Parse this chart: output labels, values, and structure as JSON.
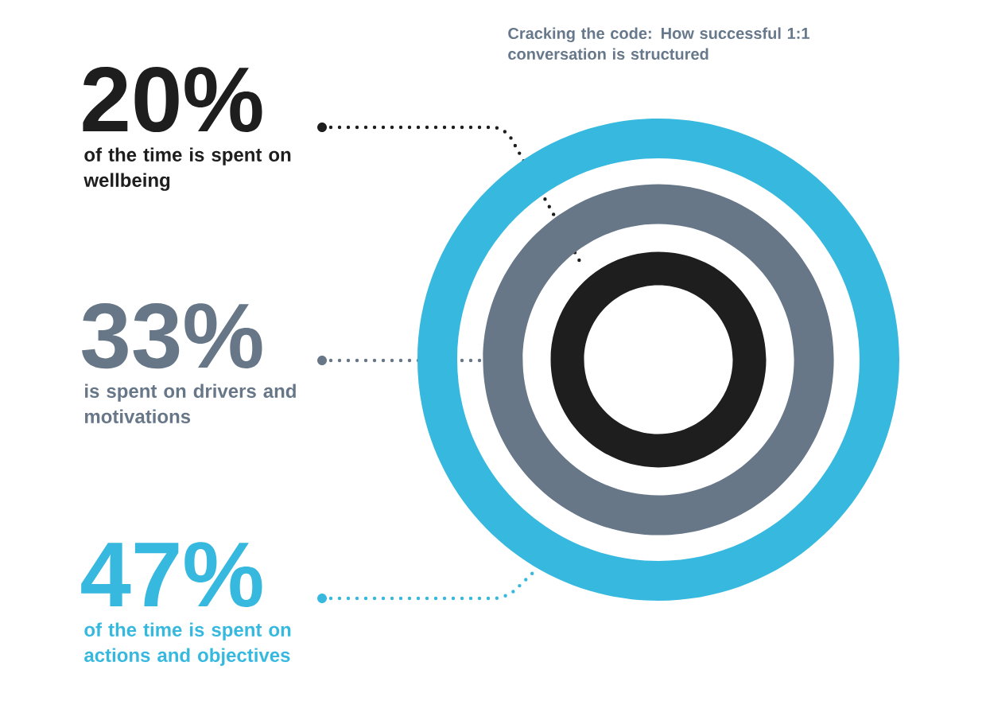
{
  "chart_data": {
    "type": "other",
    "title": "Cracking the code: How successful 1:1 conversation is structured",
    "categories": [
      "of the time is spent on wellbeing",
      "is spent on drivers and motivations",
      "of the time is spent on actions and objectives"
    ],
    "values": [
      20,
      33,
      47
    ],
    "value_labels": [
      "20%",
      "33%",
      "47%"
    ],
    "colors": [
      "#1e1e1e",
      "#677788",
      "#37b9df"
    ]
  }
}
